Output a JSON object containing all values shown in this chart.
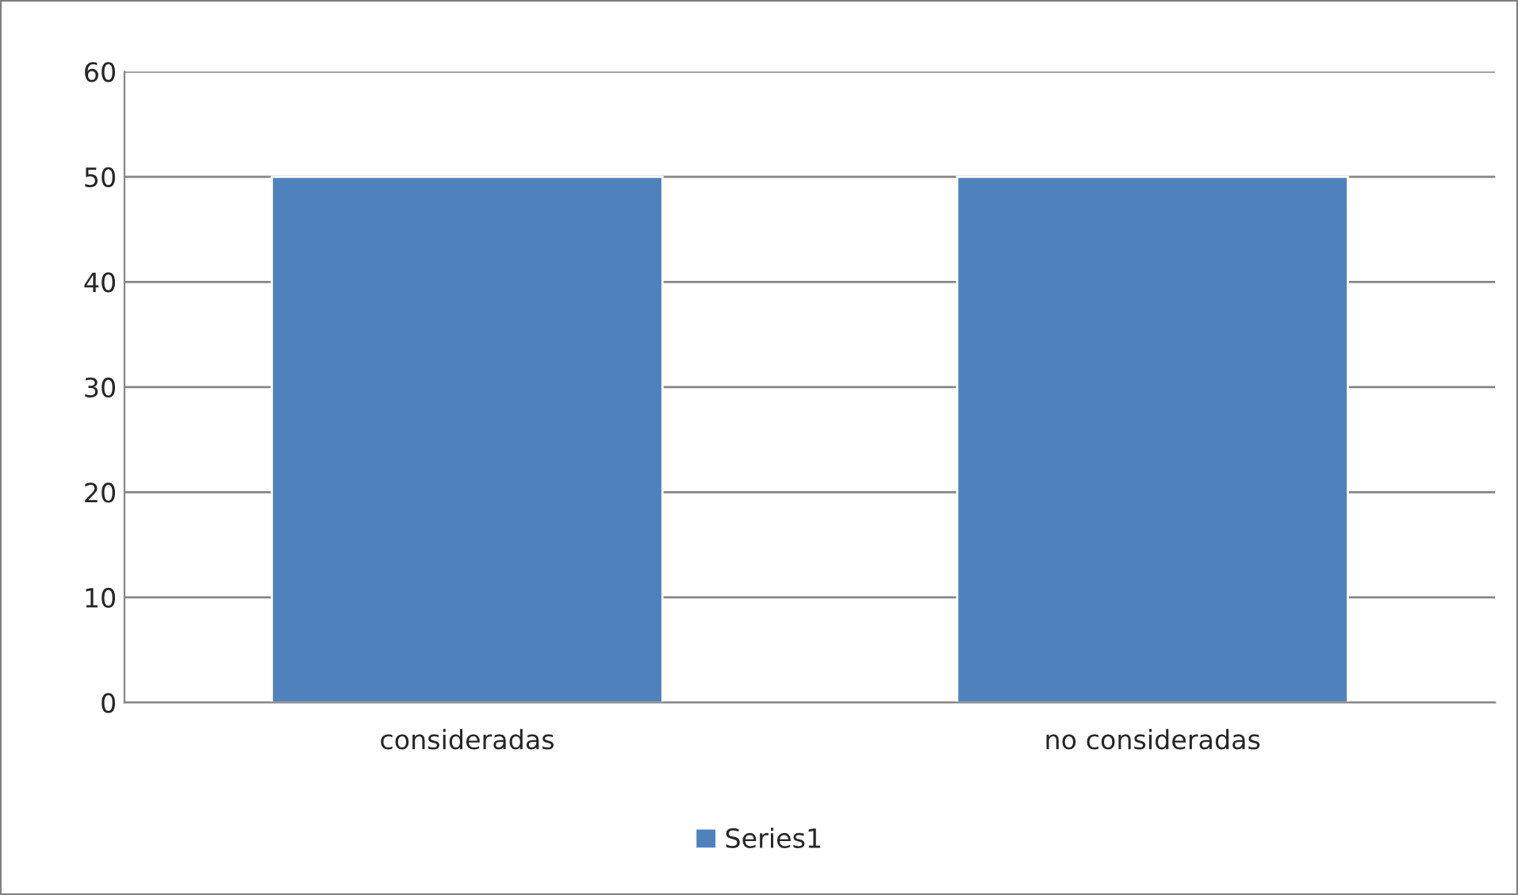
{
  "chart_data": {
    "type": "bar",
    "categories": [
      "consideradas",
      "no consideradas"
    ],
    "series": [
      {
        "name": "Series1",
        "color": "#4f81bd",
        "values": [
          50,
          50
        ]
      }
    ],
    "ylim": [
      0,
      60
    ],
    "yticks": [
      0,
      10,
      20,
      30,
      40,
      50,
      60
    ],
    "grid": "y",
    "legend": "bottom"
  }
}
